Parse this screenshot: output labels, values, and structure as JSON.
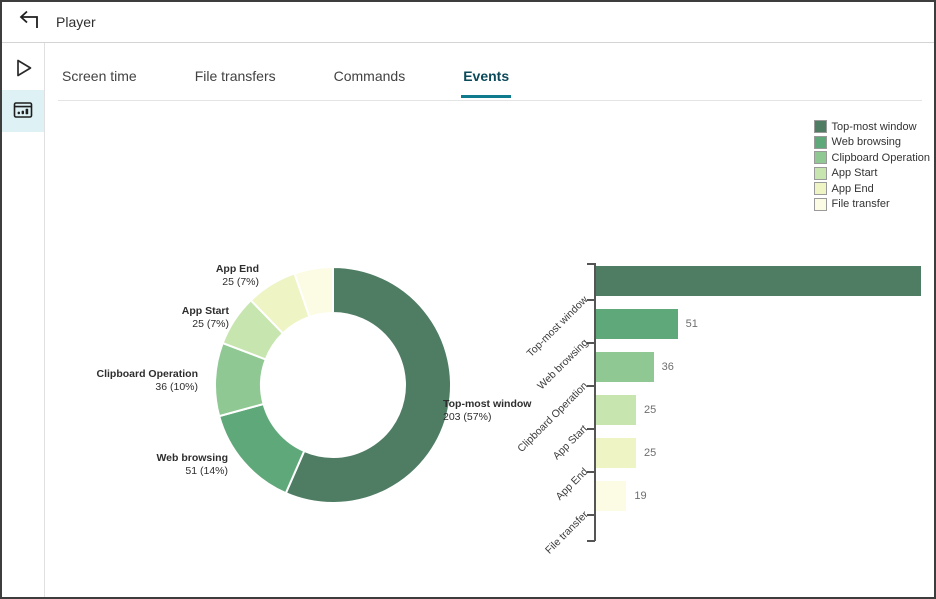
{
  "header": {
    "title": "Player"
  },
  "sidebar": {
    "items": [
      {
        "icon": "play",
        "active": false
      },
      {
        "icon": "session-metrics",
        "active": true
      }
    ]
  },
  "tabs": {
    "items": [
      {
        "label": "Screen time",
        "active": false
      },
      {
        "label": "File transfers",
        "active": false
      },
      {
        "label": "Commands",
        "active": false
      },
      {
        "label": "Events",
        "active": true
      }
    ]
  },
  "colors": {
    "accent_teal": "#0f7b8c",
    "active_tab_text": "#0b4a5a",
    "sidebar_active_bg": "#def2f5",
    "series": [
      "#4f7d64",
      "#5fa87a",
      "#8fc893",
      "#c7e5ae",
      "#eef4c4",
      "#fcfce4"
    ]
  },
  "chart_data": [
    {
      "type": "pie",
      "subtype": "donut",
      "categories": [
        "Top-most window",
        "Web browsing",
        "Clipboard Operation",
        "App Start",
        "App End",
        "File transfer"
      ],
      "values": [
        203,
        51,
        36,
        25,
        25,
        19
      ],
      "colors": [
        "#4f7d64",
        "#5fa87a",
        "#8fc893",
        "#c7e5ae",
        "#eef4c4",
        "#fcfce4"
      ],
      "start_angle_deg": 0,
      "direction": "clockwise",
      "slice_labels": [
        {
          "line1": "Top-most window",
          "line2": "203 (57%)"
        },
        {
          "line1": "Web browsing",
          "line2": "51 (14%)"
        },
        {
          "line1": "Clipboard Operation",
          "line2": "36 (10%)"
        },
        {
          "line1": "App Start",
          "line2": "25 (7%)"
        },
        {
          "line1": "App End",
          "line2": "25 (7%)"
        },
        null
      ],
      "legend": {
        "position": "top-right",
        "entries": [
          "Top-most window",
          "Web browsing",
          "Clipboard Operation",
          "App Start",
          "App End",
          "File transfer"
        ]
      }
    },
    {
      "type": "bar",
      "orientation": "horizontal",
      "categories": [
        "Top-most window",
        "Web browsing",
        "Clipboard Operation",
        "App Start",
        "App End",
        "File transfer"
      ],
      "values": [
        203,
        51,
        36,
        25,
        25,
        19
      ],
      "colors": [
        "#4f7d64",
        "#5fa87a",
        "#8fc893",
        "#c7e5ae",
        "#eef4c4",
        "#fcfce4"
      ],
      "bar_value_labels": [
        null,
        "51",
        "36",
        "25",
        "25",
        "19"
      ],
      "grid": false
    }
  ]
}
